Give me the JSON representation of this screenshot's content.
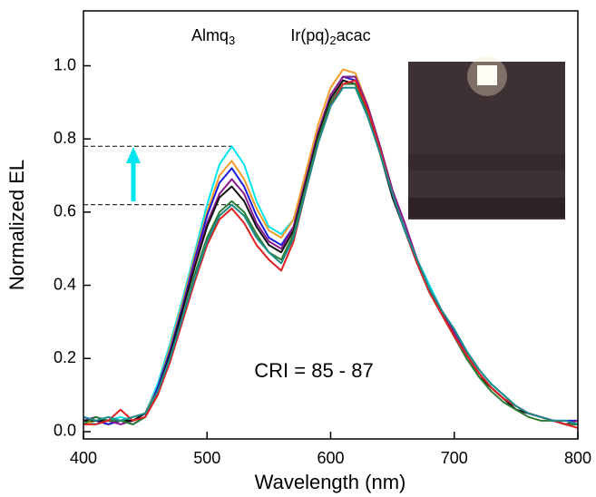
{
  "chart_data": {
    "type": "line",
    "x_label": "Wavelength (nm)",
    "y_label": "Normalized EL",
    "annotations": [
      {
        "segments": [
          "Almq",
          "3"
        ],
        "x": 505,
        "y": 1.08
      },
      {
        "segments": [
          "Ir(pq)",
          "2",
          "acac"
        ],
        "x": 600,
        "y": 1.08
      }
    ],
    "cri_text": "CRI = 85 - 87",
    "reference_lines": [
      {
        "y": 0.78,
        "x_end": 520
      },
      {
        "y": 0.62,
        "x_end": 526
      }
    ],
    "xlim": [
      400,
      800
    ],
    "ylim": [
      -0.02,
      1.15
    ],
    "xticks": [
      400,
      500,
      600,
      700,
      800
    ],
    "yticks": [
      {
        "value": 0,
        "label": "0.0"
      },
      {
        "value": 0.2,
        "label": "0.2"
      },
      {
        "value": 0.4,
        "label": "0.4"
      },
      {
        "value": 0.6,
        "label": "0.6"
      },
      {
        "value": 0.8,
        "label": "0.8"
      },
      {
        "value": 1,
        "label": "1.0"
      }
    ],
    "x": [
      400,
      410,
      420,
      430,
      440,
      450,
      460,
      470,
      480,
      490,
      500,
      510,
      520,
      530,
      540,
      550,
      560,
      570,
      580,
      590,
      600,
      610,
      620,
      630,
      640,
      650,
      660,
      670,
      680,
      690,
      700,
      710,
      720,
      730,
      740,
      750,
      760,
      770,
      780,
      790,
      800
    ],
    "series": [
      {
        "color": "#00e5ee",
        "values": [
          0.03,
          0.02,
          0.03,
          0.04,
          0.03,
          0.05,
          0.13,
          0.24,
          0.36,
          0.49,
          0.62,
          0.73,
          0.78,
          0.73,
          0.63,
          0.56,
          0.54,
          0.58,
          0.7,
          0.82,
          0.92,
          0.97,
          0.97,
          0.89,
          0.78,
          0.66,
          0.56,
          0.47,
          0.4,
          0.33,
          0.28,
          0.22,
          0.17,
          0.13,
          0.1,
          0.07,
          0.05,
          0.04,
          0.03,
          0.02,
          0.02
        ]
      },
      {
        "color": "#f39c2a",
        "values": [
          0.02,
          0.03,
          0.02,
          0.03,
          0.04,
          0.05,
          0.12,
          0.23,
          0.35,
          0.48,
          0.6,
          0.7,
          0.74,
          0.69,
          0.61,
          0.55,
          0.53,
          0.58,
          0.71,
          0.84,
          0.94,
          0.99,
          0.98,
          0.89,
          0.78,
          0.66,
          0.55,
          0.46,
          0.39,
          0.32,
          0.27,
          0.21,
          0.16,
          0.12,
          0.09,
          0.07,
          0.05,
          0.04,
          0.03,
          0.02,
          0.02
        ]
      },
      {
        "color": "#1a1adb",
        "values": [
          0.04,
          0.03,
          0.02,
          0.03,
          0.02,
          0.04,
          0.12,
          0.22,
          0.34,
          0.47,
          0.59,
          0.68,
          0.72,
          0.67,
          0.59,
          0.53,
          0.51,
          0.56,
          0.69,
          0.82,
          0.92,
          0.97,
          0.96,
          0.88,
          0.77,
          0.65,
          0.55,
          0.46,
          0.39,
          0.33,
          0.27,
          0.21,
          0.16,
          0.12,
          0.09,
          0.06,
          0.05,
          0.04,
          0.03,
          0.03,
          0.03
        ]
      },
      {
        "color": "#8a1a8a",
        "values": [
          0.03,
          0.04,
          0.03,
          0.02,
          0.03,
          0.05,
          0.11,
          0.21,
          0.33,
          0.46,
          0.57,
          0.65,
          0.69,
          0.65,
          0.57,
          0.52,
          0.5,
          0.56,
          0.69,
          0.82,
          0.92,
          0.97,
          0.97,
          0.89,
          0.78,
          0.66,
          0.57,
          0.47,
          0.39,
          0.33,
          0.27,
          0.21,
          0.16,
          0.12,
          0.09,
          0.07,
          0.05,
          0.04,
          0.03,
          0.02,
          0.03
        ]
      },
      {
        "color": "#111111",
        "values": [
          0.03,
          0.03,
          0.03,
          0.03,
          0.03,
          0.05,
          0.11,
          0.21,
          0.33,
          0.45,
          0.56,
          0.64,
          0.67,
          0.63,
          0.56,
          0.51,
          0.49,
          0.55,
          0.68,
          0.81,
          0.91,
          0.96,
          0.95,
          0.87,
          0.76,
          0.64,
          0.55,
          0.46,
          0.38,
          0.32,
          0.26,
          0.2,
          0.15,
          0.12,
          0.09,
          0.06,
          0.05,
          0.04,
          0.03,
          0.02,
          0.02
        ]
      },
      {
        "color": "#2e7d32",
        "values": [
          0.02,
          0.04,
          0.03,
          0.03,
          0.02,
          0.04,
          0.1,
          0.2,
          0.31,
          0.43,
          0.53,
          0.6,
          0.63,
          0.6,
          0.54,
          0.49,
          0.47,
          0.54,
          0.67,
          0.8,
          0.9,
          0.95,
          0.95,
          0.87,
          0.76,
          0.65,
          0.55,
          0.46,
          0.38,
          0.32,
          0.26,
          0.2,
          0.15,
          0.11,
          0.08,
          0.06,
          0.04,
          0.03,
          0.03,
          0.02,
          0.02
        ]
      },
      {
        "color": "#e02020",
        "values": [
          0.02,
          0.02,
          0.03,
          0.06,
          0.03,
          0.04,
          0.1,
          0.19,
          0.3,
          0.41,
          0.51,
          0.58,
          0.61,
          0.57,
          0.51,
          0.47,
          0.44,
          0.52,
          0.66,
          0.79,
          0.89,
          0.95,
          0.96,
          0.88,
          0.77,
          0.65,
          0.55,
          0.46,
          0.38,
          0.32,
          0.26,
          0.21,
          0.16,
          0.12,
          0.09,
          0.07,
          0.05,
          0.04,
          0.03,
          0.02,
          0.01
        ]
      },
      {
        "color": "#1a8c8c",
        "values": [
          0.04,
          0.03,
          0.04,
          0.03,
          0.04,
          0.05,
          0.11,
          0.2,
          0.31,
          0.42,
          0.52,
          0.59,
          0.62,
          0.59,
          0.53,
          0.49,
          0.46,
          0.53,
          0.66,
          0.79,
          0.89,
          0.94,
          0.94,
          0.86,
          0.76,
          0.65,
          0.55,
          0.47,
          0.39,
          0.33,
          0.28,
          0.22,
          0.17,
          0.13,
          0.1,
          0.07,
          0.05,
          0.04,
          0.03,
          0.03,
          0.02
        ]
      }
    ]
  }
}
